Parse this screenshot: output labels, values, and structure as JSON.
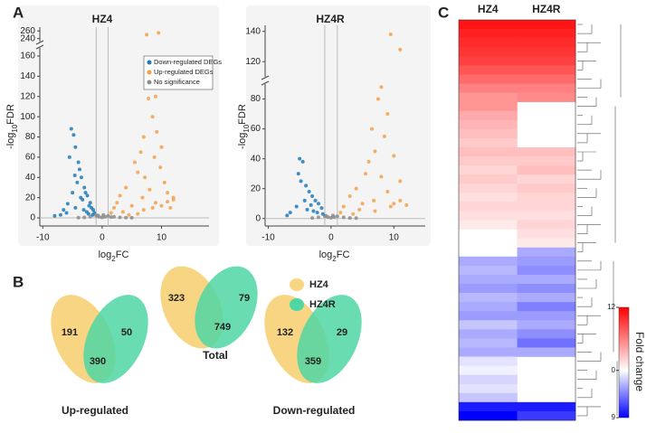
{
  "chart_data": [
    {
      "type": "volcano",
      "panel_label": "A",
      "title": "HZ4",
      "x_label": [
        "log",
        "2",
        "FC"
      ],
      "y_label": [
        "-log",
        "10",
        "FDR"
      ],
      "xlim": [
        -10.5,
        18
      ],
      "xticks": [
        -10,
        0,
        10
      ],
      "ylim": [
        -8,
        270
      ],
      "ybreak": [
        168,
        232
      ],
      "yticks": [
        0,
        20,
        40,
        60,
        80,
        100,
        120,
        140,
        160,
        240,
        260
      ],
      "vlines": [
        -1,
        1
      ],
      "series": [
        {
          "name": "Down-regulated DEGs",
          "color": "#1f7ab8",
          "x": [
            -5.2,
            -4.8,
            -4.5,
            -5.5,
            -4,
            -3.8,
            -3.5,
            -4.2,
            -3,
            -2.8,
            -2.5,
            -3.3,
            -2,
            -2.2,
            -1.8,
            -1.5,
            -4.5,
            -6,
            -7,
            -8,
            -1.3,
            -2.6,
            -3.6,
            -5,
            -4.6,
            -1.6,
            -3.1,
            -2.3,
            -5.8,
            -6.5
          ],
          "values": [
            88,
            82,
            70,
            60,
            55,
            48,
            40,
            35,
            30,
            25,
            22,
            18,
            15,
            12,
            10,
            8,
            10,
            5,
            3,
            2,
            5,
            6,
            20,
            25,
            42,
            3,
            8,
            4,
            14,
            8
          ]
        },
        {
          "name": "Up-regulated DEGs",
          "color": "#f5a04a",
          "x": [
            9.5,
            7.5,
            8,
            9,
            7.8,
            8.5,
            9.2,
            7,
            10,
            6.5,
            8.8,
            5.5,
            9.8,
            6,
            7.2,
            10.5,
            4,
            8,
            11,
            3,
            6.8,
            12,
            2.5,
            9,
            2,
            5,
            11.5,
            1.5,
            3.5,
            7,
            8.5,
            10,
            4.5,
            6,
            12,
            11
          ],
          "values": [
            255,
            250,
            158,
            120,
            118,
            100,
            85,
            80,
            70,
            65,
            60,
            55,
            50,
            45,
            40,
            35,
            30,
            28,
            25,
            22,
            20,
            18,
            15,
            15,
            10,
            12,
            10,
            5,
            6,
            8,
            10,
            12,
            3,
            4,
            20,
            16
          ]
        },
        {
          "name": "No significance",
          "color": "#8c8c8c",
          "x": [
            -1,
            -0.5,
            0,
            0.5,
            1,
            -2,
            2,
            3,
            -3,
            4,
            -4,
            5,
            0.2,
            -0.7,
            1.5
          ],
          "values": [
            2,
            1,
            0.5,
            1,
            2,
            1,
            1,
            0.5,
            0.5,
            0.3,
            0.3,
            0.2,
            3,
            2.5,
            0.8
          ]
        }
      ]
    },
    {
      "type": "volcano",
      "title": "HZ4R",
      "x_label": [
        "log",
        "2",
        "FC"
      ],
      "y_label": [
        "-log",
        "10",
        "FDR"
      ],
      "xlim": [
        -10.5,
        15
      ],
      "xticks": [
        -10,
        0,
        10
      ],
      "ylim": [
        -5,
        144
      ],
      "ybreak": [
        90,
        110
      ],
      "yticks": [
        0,
        20,
        40,
        60,
        80,
        120,
        140
      ],
      "vlines": [
        -1,
        1
      ],
      "series": [
        {
          "color": "#1f7ab8",
          "x": [
            -5,
            -4.5,
            -5.2,
            -4.8,
            -4,
            -3.5,
            -3,
            -2.5,
            -2,
            -1.5,
            -4.2,
            -5.5,
            -6.5,
            -3.8,
            -2.8,
            -1.3,
            -7,
            -3.2,
            -2.2
          ],
          "values": [
            40,
            38,
            30,
            25,
            22,
            18,
            15,
            12,
            10,
            7,
            12,
            8,
            4,
            6,
            5,
            3,
            2,
            9,
            4
          ]
        },
        {
          "color": "#f5a04a",
          "x": [
            9.5,
            11,
            8,
            7.5,
            9,
            6.5,
            8.5,
            7,
            10,
            6,
            5.5,
            8,
            11,
            4,
            9,
            3,
            6.8,
            2,
            5,
            1.5,
            7,
            9.5,
            3.5,
            10,
            11,
            12,
            4.5
          ],
          "values": [
            138,
            128,
            88,
            80,
            70,
            60,
            55,
            45,
            42,
            38,
            30,
            28,
            25,
            20,
            18,
            15,
            12,
            8,
            10,
            4,
            5,
            8,
            3,
            10,
            12,
            9,
            6
          ]
        },
        {
          "color": "#8c8c8c",
          "x": [
            -1,
            -0.5,
            0,
            0.5,
            1,
            -2,
            2,
            3,
            -3,
            4,
            0.3,
            -0.8
          ],
          "values": [
            1.5,
            1,
            0.5,
            1,
            1.5,
            0.8,
            0.8,
            0.4,
            0.4,
            0.3,
            2,
            1.8
          ]
        }
      ]
    },
    {
      "type": "venn",
      "panel_label": "B",
      "sets": [
        {
          "name": "HZ4",
          "color": "#f7d583"
        },
        {
          "name": "HZ4R",
          "color": "#4fd6a3"
        }
      ],
      "diagrams": [
        {
          "label": "Total",
          "values": [
            323,
            749,
            79
          ]
        },
        {
          "label": "Up-regulated",
          "values": [
            191,
            390,
            50
          ]
        },
        {
          "label": "Down-regulated",
          "values": [
            132,
            359,
            29
          ]
        }
      ]
    },
    {
      "type": "heatmap",
      "panel_label": "C",
      "columns": [
        "HZ4",
        "HZ4R"
      ],
      "colors": [
        "#0000ff",
        "#ffffff",
        "#ff0000"
      ],
      "clim": [
        -9,
        12
      ],
      "cticks": [
        12,
        0,
        {
          "value": -9,
          "label": "9"
        }
      ],
      "colorbar_label": "Fold change",
      "rows": [
        [
          11,
          11
        ],
        [
          10.5,
          10.5
        ],
        [
          10,
          10
        ],
        [
          9.5,
          9.5
        ],
        [
          9,
          9
        ],
        [
          8,
          8
        ],
        [
          7,
          7
        ],
        [
          6,
          6
        ],
        [
          5,
          5.5
        ],
        [
          5,
          null
        ],
        [
          4,
          null
        ],
        [
          3.5,
          null
        ],
        [
          3,
          null
        ],
        [
          2.5,
          null
        ],
        [
          3,
          3
        ],
        [
          2.5,
          2.5
        ],
        [
          2,
          3
        ],
        [
          2.5,
          2
        ],
        [
          2,
          2.5
        ],
        [
          1.5,
          2
        ],
        [
          2,
          2
        ],
        [
          1.5,
          1.5
        ],
        [
          1,
          2
        ],
        [
          null,
          1.5
        ],
        [
          null,
          1
        ],
        [
          null,
          -3
        ],
        [
          -3,
          -3.5
        ],
        [
          -2.5,
          -4
        ],
        [
          -3,
          -3
        ],
        [
          -3.5,
          -4
        ],
        [
          -2.5,
          -3
        ],
        [
          -3,
          -4.5
        ],
        [
          -3.5,
          -3.5
        ],
        [
          -2,
          -3
        ],
        [
          -3,
          -4
        ],
        [
          -2.5,
          -5
        ],
        [
          -3,
          -3
        ],
        [
          -1,
          null
        ],
        [
          -0.5,
          null
        ],
        [
          -1.5,
          null
        ],
        [
          -1,
          null
        ],
        [
          -2,
          null
        ],
        [
          -8,
          -8
        ],
        [
          -9,
          -7
        ]
      ]
    }
  ]
}
